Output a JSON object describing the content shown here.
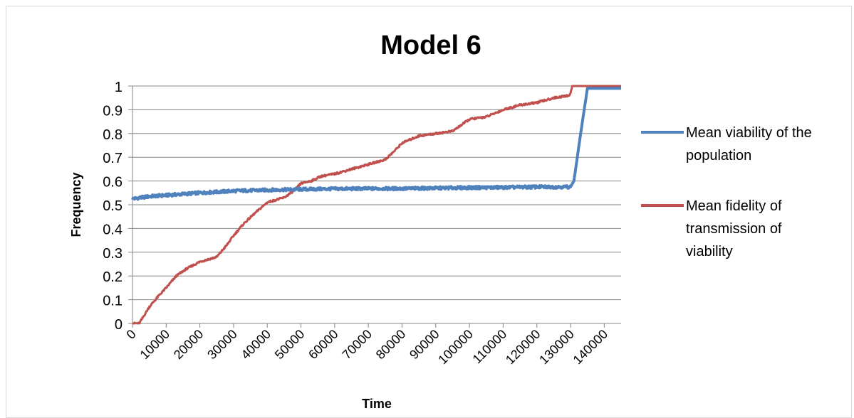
{
  "chart_data": {
    "type": "line",
    "title": "Model 6",
    "xlabel": "Time",
    "ylabel": "Frequency",
    "xlim": [
      0,
      145000
    ],
    "ylim": [
      0,
      1
    ],
    "x_ticks": [
      0,
      10000,
      20000,
      30000,
      40000,
      50000,
      60000,
      70000,
      80000,
      90000,
      100000,
      110000,
      120000,
      130000,
      140000
    ],
    "y_ticks": [
      0,
      0.1,
      0.2,
      0.3,
      0.4,
      0.5,
      0.6,
      0.7,
      0.8,
      0.9,
      1
    ],
    "y_tick_labels": [
      "0",
      "0.1",
      "0.2",
      "0.3",
      "0.4",
      "0.5",
      "0.6",
      "0.7",
      "0.8",
      "0.9",
      "1"
    ],
    "grid": "horizontal",
    "legend_position": "right",
    "series": [
      {
        "name": "Mean viability of the population",
        "color": "#4f81bd",
        "x": [
          0,
          5000,
          10000,
          15000,
          20000,
          30000,
          40000,
          50000,
          60000,
          70000,
          80000,
          90000,
          100000,
          110000,
          120000,
          128000,
          130000,
          131000,
          133000,
          135000,
          140000,
          145000
        ],
        "y": [
          0.525,
          0.535,
          0.54,
          0.545,
          0.55,
          0.558,
          0.562,
          0.565,
          0.567,
          0.568,
          0.568,
          0.57,
          0.572,
          0.573,
          0.575,
          0.575,
          0.575,
          0.6,
          0.8,
          0.99,
          0.99,
          0.99
        ]
      },
      {
        "name": "Mean fidelity of transmission of viability",
        "color": "#c0504d",
        "x": [
          0,
          2000,
          5000,
          8000,
          10000,
          13000,
          16000,
          20000,
          25000,
          28000,
          30000,
          33000,
          36000,
          40000,
          45000,
          48000,
          50000,
          53000,
          56000,
          60000,
          65000,
          70000,
          75000,
          78000,
          80000,
          85000,
          90000,
          95000,
          100000,
          105000,
          110000,
          115000,
          120000,
          125000,
          129500,
          130000,
          130500,
          135000,
          145000
        ],
        "y": [
          0,
          0.0,
          0.07,
          0.12,
          0.15,
          0.2,
          0.23,
          0.26,
          0.28,
          0.33,
          0.37,
          0.42,
          0.46,
          0.51,
          0.53,
          0.56,
          0.59,
          0.6,
          0.62,
          0.63,
          0.65,
          0.67,
          0.69,
          0.73,
          0.76,
          0.79,
          0.8,
          0.81,
          0.86,
          0.87,
          0.9,
          0.92,
          0.93,
          0.95,
          0.96,
          0.97,
          1.0,
          1.0,
          1.0
        ]
      }
    ]
  }
}
